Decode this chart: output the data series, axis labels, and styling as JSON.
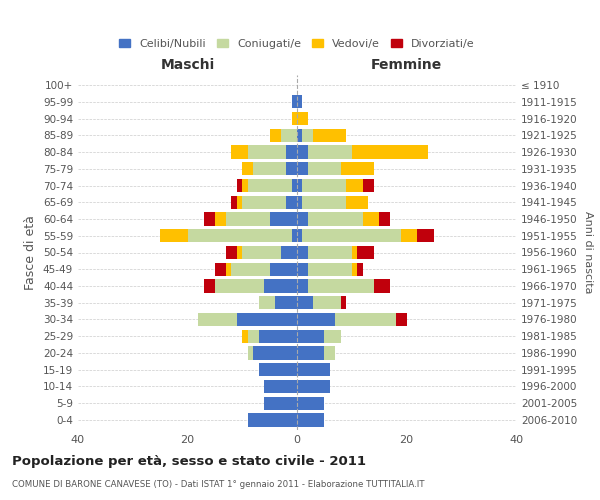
{
  "age_groups": [
    "100+",
    "95-99",
    "90-94",
    "85-89",
    "80-84",
    "75-79",
    "70-74",
    "65-69",
    "60-64",
    "55-59",
    "50-54",
    "45-49",
    "40-44",
    "35-39",
    "30-34",
    "25-29",
    "20-24",
    "15-19",
    "10-14",
    "5-9",
    "0-4"
  ],
  "birth_years": [
    "≤ 1910",
    "1911-1915",
    "1916-1920",
    "1921-1925",
    "1926-1930",
    "1931-1935",
    "1936-1940",
    "1941-1945",
    "1946-1950",
    "1951-1955",
    "1956-1960",
    "1961-1965",
    "1966-1970",
    "1971-1975",
    "1976-1980",
    "1981-1985",
    "1986-1990",
    "1991-1995",
    "1996-2000",
    "2001-2005",
    "2006-2010"
  ],
  "colors": {
    "celibi": "#4472c4",
    "coniugati": "#c5d9a0",
    "vedovi": "#ffc000",
    "divorziati": "#c0000c"
  },
  "male": {
    "celibi": [
      0,
      1,
      0,
      0,
      2,
      2,
      1,
      2,
      5,
      1,
      3,
      5,
      6,
      4,
      11,
      7,
      8,
      7,
      6,
      6,
      9
    ],
    "coniugati": [
      0,
      0,
      0,
      3,
      7,
      6,
      8,
      8,
      8,
      19,
      7,
      7,
      9,
      3,
      7,
      2,
      1,
      0,
      0,
      0,
      0
    ],
    "vedovi": [
      0,
      0,
      1,
      2,
      3,
      2,
      1,
      1,
      2,
      5,
      1,
      1,
      0,
      0,
      0,
      1,
      0,
      0,
      0,
      0,
      0
    ],
    "divorziati": [
      0,
      0,
      0,
      0,
      0,
      0,
      1,
      1,
      2,
      0,
      2,
      2,
      2,
      0,
      0,
      0,
      0,
      0,
      0,
      0,
      0
    ]
  },
  "female": {
    "nubili": [
      0,
      1,
      0,
      1,
      2,
      2,
      1,
      1,
      2,
      1,
      2,
      2,
      2,
      3,
      7,
      5,
      5,
      6,
      6,
      5,
      5
    ],
    "coniugati": [
      0,
      0,
      0,
      2,
      8,
      6,
      8,
      8,
      10,
      18,
      8,
      8,
      12,
      5,
      11,
      3,
      2,
      0,
      0,
      0,
      0
    ],
    "vedovi": [
      0,
      0,
      2,
      6,
      14,
      6,
      3,
      4,
      3,
      3,
      1,
      1,
      0,
      0,
      0,
      0,
      0,
      0,
      0,
      0,
      0
    ],
    "divorziati": [
      0,
      0,
      0,
      0,
      0,
      0,
      2,
      0,
      2,
      3,
      3,
      1,
      3,
      1,
      2,
      0,
      0,
      0,
      0,
      0,
      0
    ]
  },
  "xlim": 40,
  "title": "Popolazione per età, sesso e stato civile - 2011",
  "subtitle": "COMUNE DI BARONE CANAVESE (TO) - Dati ISTAT 1° gennaio 2011 - Elaborazione TUTTITALIA.IT",
  "ylabel_left": "Fasce di età",
  "ylabel_right": "Anni di nascita",
  "label_maschi": "Maschi",
  "label_femmine": "Femmine",
  "legend_labels": [
    "Celibi/Nubili",
    "Coniugati/e",
    "Vedovi/e",
    "Divorziati/e"
  ],
  "bg_color": "#ffffff",
  "grid_color": "#cccccc",
  "bar_height": 0.8
}
